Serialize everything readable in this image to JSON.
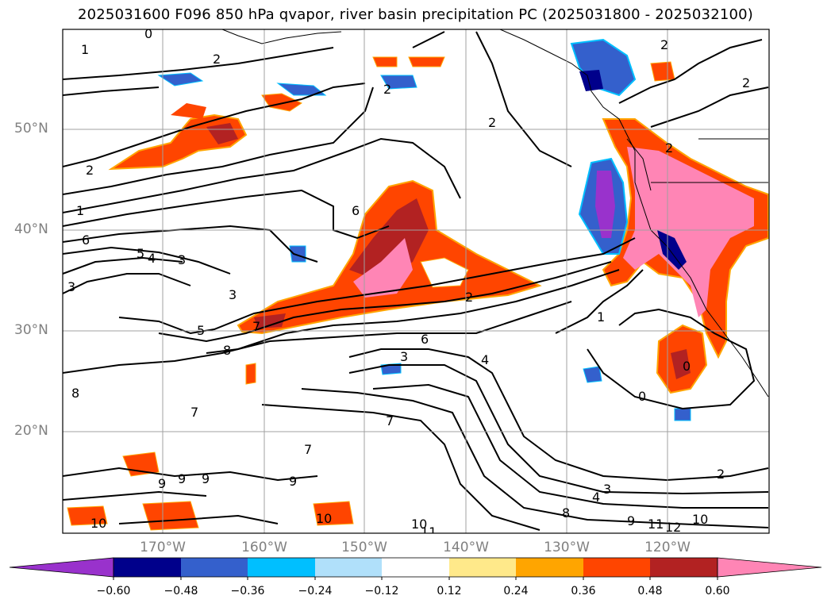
{
  "title": "2025031600 F096 850 hPa qvapor, river basin precipitation PC (2025031800 - 2025032100)",
  "lat_labels": [
    "50°N",
    "40°N",
    "30°N",
    "20°N"
  ],
  "lon_labels": [
    "170°W",
    "160°W",
    "150°W",
    "140°W",
    "130°W",
    "120°W"
  ],
  "colorbar": {
    "colors": [
      "#9932cc",
      "#00008b",
      "#3460cc",
      "#00bfff",
      "#b0e0fa",
      "#ffffff",
      "#ffe98a",
      "#ffa500",
      "#ff4500",
      "#b22222",
      "#ff85b5"
    ],
    "tick_labels": [
      "−0.60",
      "−0.48",
      "−0.36",
      "−0.24",
      "−0.12",
      "0.12",
      "0.24",
      "0.36",
      "0.48",
      "0.60"
    ]
  },
  "contour_labels": [
    "0",
    "1",
    "2",
    "2",
    "2",
    "2",
    "2",
    "2",
    "1",
    "6",
    "5",
    "4",
    "3",
    "3",
    "6",
    "5",
    "7",
    "8",
    "3",
    "6",
    "4",
    "1",
    "0",
    "0",
    "8",
    "7",
    "9",
    "9",
    "9",
    "9",
    "10",
    "10",
    "10",
    "11",
    "9",
    "11",
    "12",
    "10",
    "3",
    "4",
    "8",
    "2",
    "2",
    "2",
    "3",
    "7",
    "7"
  ]
}
